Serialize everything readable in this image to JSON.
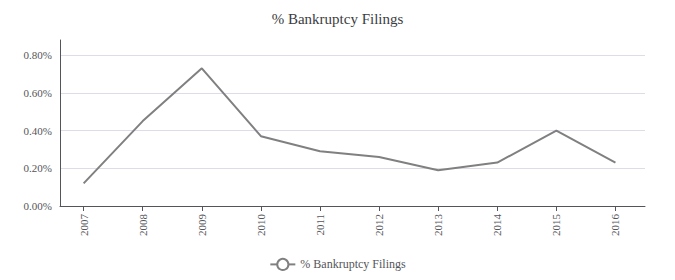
{
  "chart_data": {
    "type": "line",
    "title": "% Bankruptcy Filings",
    "x": [
      2007,
      2008,
      2009,
      2010,
      2011,
      2012,
      2013,
      2014,
      2015,
      2016
    ],
    "series": [
      {
        "name": "% Bankruptcy Filings",
        "color": "#808080",
        "values": [
          0.0012,
          0.0045,
          0.0073,
          0.0037,
          0.0029,
          0.0026,
          0.0019,
          0.0023,
          0.004,
          0.0023
        ]
      }
    ],
    "xlim": [
      2006.6,
      2016.5
    ],
    "xticks": [
      2007,
      2008,
      2009,
      2010,
      2011,
      2012,
      2013,
      2014,
      2015,
      2016
    ],
    "ylim": [
      0.0,
      0.0088
    ],
    "yticks": [
      {
        "value": 0.0,
        "label": "0.00%"
      },
      {
        "value": 0.002,
        "label": "0.20%"
      },
      {
        "value": 0.004,
        "label": "0.40%"
      },
      {
        "value": 0.006,
        "label": "0.60%"
      },
      {
        "value": 0.008,
        "label": "0.80%"
      }
    ],
    "grid": "y",
    "legend": "bottom"
  }
}
